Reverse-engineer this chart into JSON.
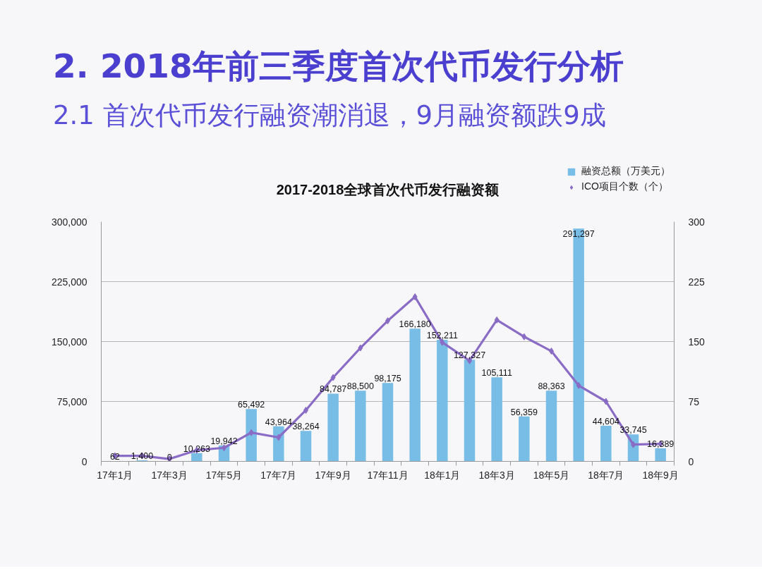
{
  "chart_data": {
    "type": "bar",
    "title": "2. 2018年前三季度首次代币发行分析",
    "subtitle": "2.1 首次代币发行融资潮消退，9月融资额跌9成",
    "annotations": [
      "2017-2018全球首次代币发行融资额"
    ],
    "categories": [
      "17年1月",
      null,
      "17年3月",
      null,
      "17年5月",
      null,
      "17年7月",
      null,
      "17年9月",
      null,
      "17年11月",
      null,
      "18年1月",
      null,
      "18年3月",
      null,
      "18年5月",
      null,
      "18年7月",
      null,
      "18年9月"
    ],
    "series": [
      {
        "name": "融资总额（万美元）",
        "color": "#78bde6",
        "values": [
          62,
          1400,
          0,
          10263,
          19942,
          65492,
          43964,
          38264,
          84787,
          88500,
          98175,
          166180,
          152211,
          127327,
          105111,
          56359,
          88363,
          291297,
          44604,
          33745,
          16389
        ],
        "value_labels": [
          "62",
          "1,400",
          "0",
          "10,263",
          "19,942",
          "65,492",
          "43,964",
          "38,264",
          "84,787",
          "88,500",
          "98,175",
          "166,180",
          "152,211",
          "127,327",
          "105,111",
          "56,359",
          "88,363",
          "291,297",
          "44,604",
          "33,745",
          "16,389"
        ]
      },
      {
        "name": "ICO项目个数（个）",
        "type": "line",
        "axis": "y2",
        "color": "#8a6cc6",
        "marker": "diamond",
        "values": [
          7,
          7,
          3,
          14,
          17,
          36,
          30,
          64,
          105,
          142,
          176,
          206,
          149,
          126,
          177,
          156,
          138,
          95,
          75,
          21,
          22
        ]
      }
    ],
    "ylim": [
      0,
      300000
    ],
    "yticks": [
      0,
      {
        "value": 75000,
        "label": "75,000"
      },
      {
        "value": 150000,
        "label": "150,000"
      },
      {
        "value": 225000,
        "label": "225,000"
      },
      {
        "value": 300000,
        "label": "300,000"
      }
    ],
    "y2lim": [
      0,
      300
    ],
    "y2ticks": [
      0,
      75,
      150,
      225,
      300
    ],
    "grid": "y",
    "legend": "top right"
  }
}
